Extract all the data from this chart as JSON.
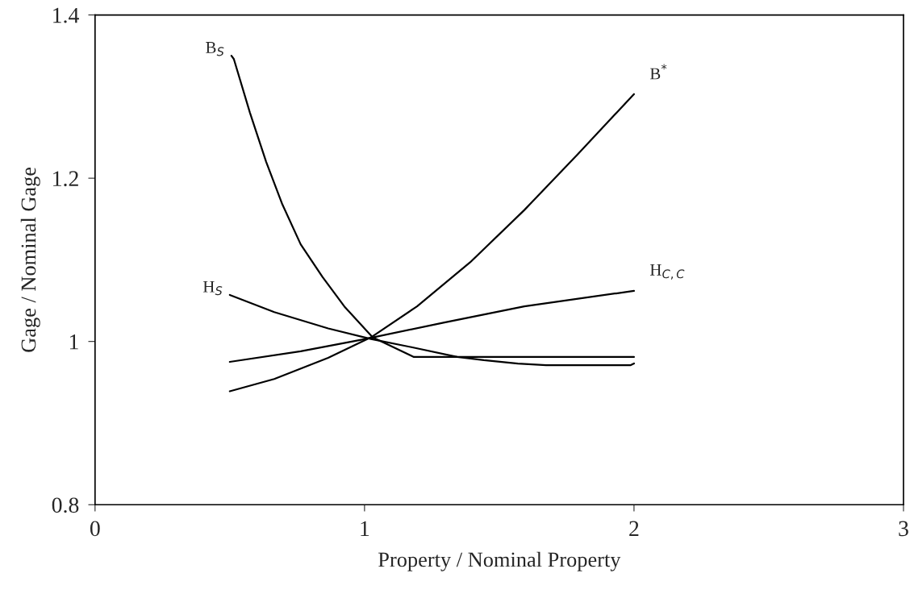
{
  "chart_data": {
    "type": "line",
    "xlabel": "Property / Nominal Property",
    "ylabel": "Gage / Nominal Gage",
    "xlim": [
      0,
      3
    ],
    "xticks": [
      0,
      1,
      2,
      3
    ],
    "ylim": [
      0.8,
      1.4
    ],
    "yticks": [
      0.8,
      1,
      1.2,
      1.4
    ],
    "grid": false,
    "legend": false,
    "marker": "none",
    "line_style": "solid",
    "series": [
      {
        "name": "B$_{S}$",
        "color": "#000000",
        "x": [
          0.506,
          0.515,
          0.575,
          0.635,
          0.695,
          0.763,
          0.844,
          0.925,
          1.03,
          1.183,
          2.0
        ],
        "values": [
          1.35,
          1.346,
          1.28,
          1.22,
          1.168,
          1.119,
          1.079,
          1.043,
          1.005,
          0.981,
          0.981
        ]
      },
      {
        "name": "H$_{S}$",
        "color": "#000000",
        "x": [
          0.5,
          0.665,
          0.865,
          1.024,
          1.174,
          1.344,
          1.443,
          1.569,
          1.674,
          1.988,
          2.0
        ],
        "values": [
          1.057,
          1.036,
          1.016,
          1.003,
          0.993,
          0.981,
          0.977,
          0.973,
          0.971,
          0.971,
          0.973
        ]
      },
      {
        "name": "H$_{C,C}$",
        "color": "#000000",
        "x": [
          0.5,
          0.763,
          1.003,
          1.293,
          1.593,
          2.0
        ],
        "values": [
          0.975,
          0.988,
          1.003,
          1.023,
          1.043,
          1.062
        ]
      },
      {
        "name": "B$^{*}$",
        "color": "#000000",
        "x": [
          0.5,
          0.665,
          0.865,
          1.024,
          1.195,
          1.392,
          1.593,
          1.793,
          2.0
        ],
        "values": [
          0.939,
          0.954,
          0.98,
          1.005,
          1.043,
          1.097,
          1.161,
          1.23,
          1.303
        ]
      }
    ]
  }
}
